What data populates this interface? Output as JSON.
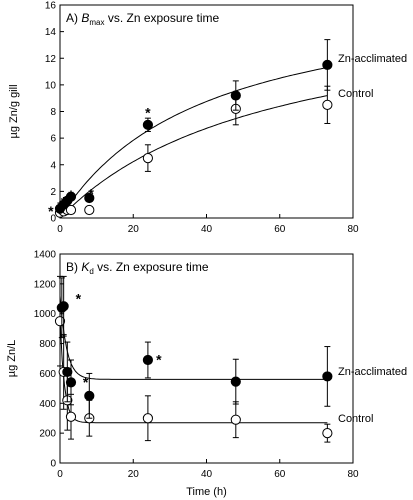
{
  "chart_data": [
    {
      "type": "scatter",
      "title": "A) B_max vs. Zn exposure time",
      "title_parts": {
        "prefix": "A) ",
        "symbol": "B",
        "subscript": "max",
        "suffix": " vs. Zn exposure time"
      },
      "ylabel": "µg Zn/g gill",
      "xlabel": "",
      "xlim": [
        0,
        80
      ],
      "ylim": [
        0,
        16
      ],
      "xticks": [
        0,
        20,
        40,
        60,
        80
      ],
      "yticks": [
        0,
        2,
        4,
        6,
        8,
        10,
        12,
        14,
        16
      ],
      "grid": false,
      "series": [
        {
          "name": "Zn-acclimated",
          "marker": "filled-circle",
          "x": [
            0,
            1,
            2,
            3,
            8,
            24,
            48,
            73
          ],
          "y": [
            0.7,
            1.0,
            1.3,
            1.6,
            1.5,
            7.0,
            9.2,
            11.5
          ],
          "yerr": [
            0.15,
            0.2,
            0.2,
            0.2,
            0.2,
            0.5,
            1.1,
            1.9
          ],
          "fit": {
            "a": 17.5,
            "b": 40
          }
        },
        {
          "name": "Control",
          "marker": "open-circle",
          "x": [
            0,
            1,
            2,
            3,
            8,
            24,
            48,
            73
          ],
          "y": [
            0.4,
            0.5,
            0.6,
            0.6,
            0.6,
            4.5,
            8.2,
            8.5
          ],
          "yerr": [
            0.1,
            0.1,
            0.1,
            0.1,
            0.1,
            1.0,
            1.2,
            1.4
          ],
          "fit": {
            "a": 16.5,
            "b": 58
          }
        }
      ],
      "annotations": [
        {
          "text": "*",
          "x": 0,
          "y": 1.0
        },
        {
          "text": "*",
          "x": -2.5,
          "y": 0.6
        },
        {
          "text": "*",
          "x": 1,
          "y": 1.3
        },
        {
          "text": "*",
          "x": 3,
          "y": 1.8
        },
        {
          "text": "*",
          "x": 8.5,
          "y": 1.9
        },
        {
          "text": "*",
          "x": 24,
          "y": 8.0
        }
      ]
    },
    {
      "type": "scatter",
      "title": "B) K_d vs. Zn exposure time",
      "title_parts": {
        "prefix": "B) ",
        "symbol": "K",
        "subscript": "d",
        "suffix": " vs. Zn exposure time"
      },
      "ylabel": "µg Zn/L",
      "xlabel": "Time (h)",
      "xlim": [
        0,
        80
      ],
      "ylim": [
        0,
        1400
      ],
      "xticks": [
        0,
        20,
        40,
        60,
        80
      ],
      "yticks": [
        0,
        200,
        400,
        600,
        800,
        1000,
        1200,
        1400
      ],
      "grid": false,
      "series": [
        {
          "name": "Zn-acclimated",
          "marker": "filled-circle",
          "x": [
            0.5,
            1,
            2,
            3,
            8,
            24,
            48,
            73
          ],
          "y": [
            1040,
            1050,
            610,
            540,
            450,
            690,
            545,
            580
          ],
          "yerr": [
            200,
            200,
            200,
            150,
            150,
            120,
            150,
            200
          ],
          "fit": {
            "c": 560,
            "a": 560,
            "k": 0.55
          }
        },
        {
          "name": "Control",
          "marker": "open-circle",
          "x": [
            0,
            1,
            2,
            3,
            8,
            24,
            48,
            73
          ],
          "y": [
            950,
            610,
            420,
            310,
            300,
            300,
            290,
            200
          ],
          "yerr": [
            300,
            250,
            200,
            150,
            120,
            150,
            120,
            60
          ],
          "fit": {
            "c": 270,
            "a": 700,
            "k": 0.85
          }
        }
      ],
      "annotations": [
        {
          "text": "*",
          "x": 5,
          "y": 1110
        },
        {
          "text": "*",
          "x": 7,
          "y": 550
        },
        {
          "text": "*",
          "x": 27,
          "y": 700
        }
      ]
    }
  ]
}
